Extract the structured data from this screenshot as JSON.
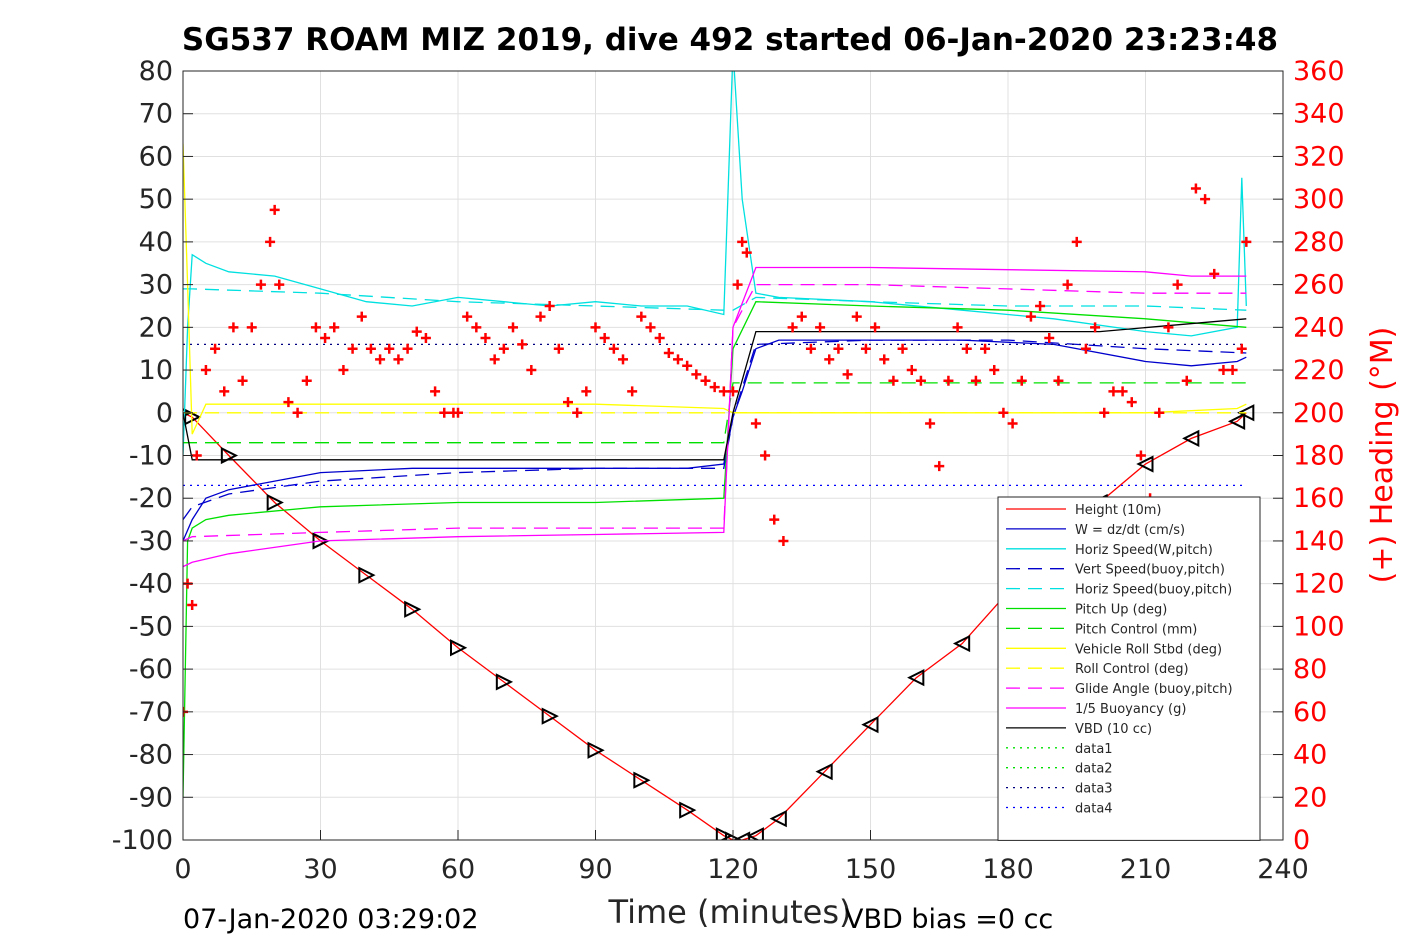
{
  "chart_data": {
    "type": "line",
    "title": "SG537 ROAM MIZ 2019, dive 492 started 06-Jan-2020 23:23:48",
    "xlabel": "Time (minutes)",
    "ylabel": "",
    "y2label": "(+) Heading (°M)",
    "xlim": [
      0,
      240
    ],
    "ylim": [
      -100,
      80
    ],
    "y2lim": [
      0,
      360
    ],
    "grid": true,
    "legend_position": "lower-right",
    "x_ticks": [
      "0",
      "30",
      "60",
      "90",
      "120",
      "150",
      "180",
      "210",
      "240"
    ],
    "y_ticks": [
      "80",
      "70",
      "60",
      "50",
      "40",
      "30",
      "20",
      "10",
      "0",
      "-10",
      "-20",
      "-30",
      "-40",
      "-50",
      "-60",
      "-70",
      "-80",
      "-90",
      "-100"
    ],
    "y2_ticks": [
      "360",
      "340",
      "320",
      "300",
      "280",
      "260",
      "240",
      "220",
      "200",
      "180",
      "160",
      "140",
      "120",
      "100",
      "80",
      "60",
      "40",
      "20",
      "0"
    ],
    "footer_left": "07-Jan-2020 03:29:02",
    "footer_right": "VBD bias =0 cc",
    "series": [
      {
        "name": "Height (10m)",
        "color": "#ff0000",
        "style": "solid",
        "x": [
          0,
          2,
          10,
          20,
          30,
          40,
          50,
          60,
          70,
          80,
          90,
          100,
          110,
          118,
          120,
          122,
          125,
          130,
          140,
          150,
          160,
          170,
          180,
          190,
          200,
          210,
          220,
          230,
          232
        ],
        "y": [
          0,
          -1,
          -10,
          -21,
          -30,
          -38,
          -46,
          -55,
          -63,
          -71,
          -79,
          -86,
          -93,
          -99,
          -100,
          -100,
          -99,
          -95,
          -84,
          -73,
          -62,
          -54,
          -42,
          -31,
          -21,
          -12,
          -6,
          -2,
          0
        ]
      },
      {
        "name": "W = dz/dt (cm/s)",
        "color": "#0000cc",
        "style": "solid",
        "x": [
          0,
          2,
          5,
          10,
          20,
          30,
          50,
          70,
          90,
          110,
          118,
          120,
          122,
          125,
          130,
          150,
          170,
          190,
          210,
          220,
          230,
          232
        ],
        "y": [
          -30,
          -25,
          -20,
          -18,
          -16,
          -14,
          -13,
          -13,
          -13,
          -13,
          -12,
          -1,
          5,
          15,
          17,
          17,
          17,
          16,
          12,
          11,
          12,
          13
        ]
      },
      {
        "name": "Horiz Speed(W,pitch)",
        "color": "#00e0e0",
        "style": "solid",
        "x": [
          0,
          1,
          2,
          5,
          10,
          20,
          30,
          40,
          50,
          60,
          70,
          80,
          90,
          100,
          110,
          118,
          120,
          122,
          125,
          130,
          150,
          170,
          190,
          210,
          220,
          230,
          231,
          232
        ],
        "y": [
          -10,
          20,
          37,
          35,
          33,
          32,
          29,
          26,
          25,
          27,
          26,
          25,
          26,
          25,
          25,
          23,
          85,
          50,
          28,
          27,
          26,
          24,
          22,
          19,
          18,
          20,
          55,
          25
        ]
      },
      {
        "name": "Vert Speed(buoy,pitch)",
        "color": "#0000cc",
        "style": "dashed",
        "x": [
          0,
          2,
          10,
          30,
          60,
          90,
          118,
          120,
          125,
          150,
          180,
          210,
          232
        ],
        "y": [
          -25,
          -22,
          -19,
          -16,
          -14,
          -13,
          -13,
          -1,
          16,
          17,
          17,
          15,
          14
        ]
      },
      {
        "name": "Horiz Speed(buoy,pitch)",
        "color": "#00e0e0",
        "style": "dashed",
        "x": [
          0,
          2,
          30,
          60,
          90,
          118,
          120,
          125,
          150,
          180,
          210,
          232
        ],
        "y": [
          29,
          29,
          28,
          26,
          25,
          24,
          24,
          27,
          26,
          25,
          25,
          24
        ]
      },
      {
        "name": "Pitch Up (deg)",
        "color": "#00e000",
        "style": "solid",
        "x": [
          0,
          1,
          2,
          5,
          10,
          30,
          60,
          90,
          118,
          120,
          125,
          150,
          180,
          210,
          232
        ],
        "y": [
          -90,
          -30,
          -27,
          -25,
          -24,
          -22,
          -21,
          -21,
          -20,
          15,
          26,
          25,
          24,
          22,
          20
        ]
      },
      {
        "name": "Pitch Control (mm)",
        "color": "#00e000",
        "style": "dashed",
        "x": [
          0,
          2,
          118,
          120,
          232
        ],
        "y": [
          -7,
          -7,
          -7,
          7,
          7
        ]
      },
      {
        "name": "Vehicle Roll Stbd (deg)",
        "color": "#ffff00",
        "style": "solid",
        "x": [
          0,
          1,
          2,
          5,
          10,
          30,
          60,
          90,
          118,
          120,
          125,
          150,
          180,
          210,
          230,
          232
        ],
        "y": [
          63,
          30,
          -5,
          2,
          2,
          2,
          2,
          2,
          1,
          0,
          0,
          0,
          0,
          0,
          1,
          2
        ]
      },
      {
        "name": "Roll Control (deg)",
        "color": "#ffff00",
        "style": "dashed",
        "x": [
          0,
          232
        ],
        "y": [
          0,
          0
        ]
      },
      {
        "name": "Glide Angle (buoy,pitch)",
        "color": "#ff00ff",
        "style": "dashed",
        "x": [
          0,
          2,
          30,
          60,
          90,
          118,
          120,
          125,
          150,
          180,
          210,
          232
        ],
        "y": [
          -30,
          -29,
          -28,
          -27,
          -27,
          -27,
          20,
          30,
          30,
          29,
          28,
          28
        ]
      },
      {
        "name": "1/5 Buoyancy (g)",
        "color": "#ff00ff",
        "style": "solid",
        "x": [
          0,
          2,
          10,
          30,
          60,
          90,
          118,
          120,
          125,
          150,
          180,
          210,
          220,
          232
        ],
        "y": [
          -36,
          -35,
          -33,
          -30,
          -29,
          -28.5,
          -28,
          20,
          34,
          34,
          33.5,
          33,
          32,
          32
        ]
      },
      {
        "name": "VBD (10 cc)",
        "color": "#000000",
        "style": "solid",
        "x": [
          0,
          2,
          118,
          120,
          125,
          180,
          200,
          232
        ],
        "y": [
          0,
          -11,
          -11,
          0,
          19,
          19,
          19,
          22
        ]
      },
      {
        "name": "data1",
        "color": "#00e000",
        "style": "dotted",
        "x": [],
        "y": []
      },
      {
        "name": "data2",
        "color": "#00e000",
        "style": "dotted",
        "x": [],
        "y": []
      },
      {
        "name": "data3",
        "color": "#000080",
        "style": "dotted",
        "x": [
          0,
          232
        ],
        "y": [
          16,
          16
        ]
      },
      {
        "name": "data4",
        "color": "#0000ff",
        "style": "dotted",
        "x": [
          0,
          232
        ],
        "y": [
          -17,
          -17
        ]
      },
      {
        "name": "Heading",
        "axis": "right",
        "color": "#ff0000",
        "style": "markers-plus",
        "x": [
          0,
          1,
          2,
          3,
          5,
          7,
          9,
          11,
          13,
          15,
          17,
          19,
          20,
          21,
          23,
          25,
          27,
          29,
          31,
          33,
          35,
          37,
          39,
          41,
          43,
          45,
          47,
          49,
          51,
          53,
          55,
          57,
          59,
          60,
          62,
          64,
          66,
          68,
          70,
          72,
          74,
          76,
          78,
          80,
          82,
          84,
          86,
          88,
          90,
          92,
          94,
          96,
          98,
          100,
          102,
          104,
          106,
          108,
          110,
          112,
          114,
          116,
          118,
          120,
          121,
          122,
          123,
          125,
          127,
          129,
          131,
          133,
          135,
          137,
          139,
          141,
          143,
          145,
          147,
          149,
          151,
          153,
          155,
          157,
          159,
          161,
          163,
          165,
          167,
          169,
          171,
          173,
          175,
          177,
          179,
          181,
          183,
          185,
          187,
          189,
          191,
          193,
          195,
          197,
          199,
          201,
          203,
          205,
          207,
          209,
          211,
          213,
          215,
          217,
          219,
          221,
          223,
          225,
          227,
          229,
          231,
          232
        ],
        "y": [
          60,
          120,
          110,
          180,
          220,
          230,
          210,
          240,
          215,
          240,
          260,
          280,
          295,
          260,
          205,
          200,
          215,
          240,
          235,
          240,
          220,
          230,
          245,
          230,
          225,
          230,
          225,
          230,
          238,
          235,
          210,
          200,
          200,
          200,
          245,
          240,
          235,
          225,
          230,
          240,
          232,
          220,
          245,
          250,
          230,
          205,
          200,
          210,
          240,
          235,
          230,
          225,
          210,
          245,
          240,
          235,
          228,
          225,
          222,
          218,
          215,
          212,
          210,
          210,
          260,
          280,
          275,
          195,
          180,
          150,
          140,
          240,
          245,
          230,
          240,
          225,
          230,
          218,
          245,
          230,
          240,
          225,
          215,
          230,
          220,
          215,
          195,
          175,
          215,
          240,
          230,
          215,
          230,
          220,
          200,
          195,
          215,
          245,
          250,
          235,
          215,
          260,
          280,
          230,
          240,
          200,
          210,
          210,
          205,
          180,
          160,
          200,
          240,
          260,
          215,
          305,
          300,
          265,
          220,
          220,
          230,
          280
        ]
      }
    ]
  }
}
